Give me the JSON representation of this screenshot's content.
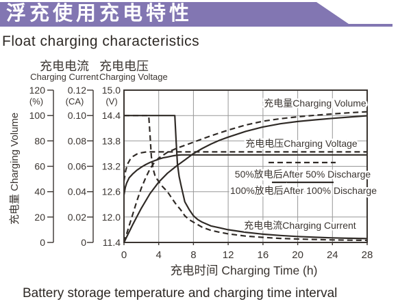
{
  "header": {
    "title_zh": "浮充使用充电特性",
    "title_en": "Float charging characteristics",
    "banner_color": "#8276b2"
  },
  "footer": {
    "caption": "Battery storage temperature and charging time interval"
  },
  "axis_titles": {
    "current_zh": "充电电流",
    "current_en": "Charging Current",
    "voltage_zh": "充电电压",
    "voltage_en": "Charging Voltage",
    "volume_label": "充电量 Charging Volume"
  },
  "chart_data": {
    "type": "line",
    "title": "Float charging characteristics",
    "grid": true,
    "x_axis": {
      "label": "充电时间 Charging Time (h)",
      "min": 0,
      "max": 28,
      "ticks": [
        0,
        4,
        8,
        12,
        16,
        20,
        24,
        28
      ]
    },
    "y_axes": {
      "volume": {
        "unit": "(%)",
        "min": 0,
        "max": 120,
        "ticks": [
          120,
          100,
          80,
          60,
          40,
          20,
          0
        ]
      },
      "current": {
        "unit": "(CA)",
        "min": 0,
        "max": 0.12,
        "ticks": [
          "0.12",
          "0.10",
          "0.08",
          "0.06",
          "0.04",
          "0.02",
          "0"
        ]
      },
      "voltage": {
        "unit": "(V)",
        "min": 11.4,
        "max": 15.0,
        "ticks": [
          "15.0",
          "14.4",
          "13.8",
          "13.2",
          "12.6",
          "12.0",
          "11.4"
        ]
      }
    },
    "annotations": {
      "volume": "充电量Charging Volume",
      "voltage": "充电电压Charging Voltage",
      "current": "充电电流Charging Current"
    },
    "legend": [
      {
        "style": "dashed",
        "label": "50%放电后After 50% Discharge"
      },
      {
        "style": "solid",
        "label": "100%放电后After 100% Discharge"
      }
    ],
    "series": [
      {
        "name": "volume-50",
        "axis": "volume",
        "style": "dashed",
        "points": [
          [
            0,
            0
          ],
          [
            0.5,
            11
          ],
          [
            1,
            22
          ],
          [
            1.5,
            33
          ],
          [
            2,
            43
          ],
          [
            2.5,
            51
          ],
          [
            3,
            58
          ],
          [
            3.5,
            63
          ],
          [
            4,
            66.5
          ],
          [
            5,
            71
          ],
          [
            6,
            74
          ],
          [
            7,
            76.5
          ],
          [
            8,
            79
          ],
          [
            9,
            81.5
          ],
          [
            10,
            84
          ],
          [
            12,
            88.5
          ],
          [
            14,
            92.5
          ],
          [
            16,
            95.5
          ],
          [
            18,
            97.5
          ],
          [
            20,
            99
          ],
          [
            22,
            100.2
          ],
          [
            24,
            101.3
          ],
          [
            26,
            102.2
          ],
          [
            28,
            103
          ]
        ]
      },
      {
        "name": "volume-100",
        "axis": "volume",
        "style": "solid",
        "points": [
          [
            0,
            0
          ],
          [
            1,
            14
          ],
          [
            2,
            27
          ],
          [
            3,
            38.5
          ],
          [
            4,
            47.5
          ],
          [
            5,
            54.5
          ],
          [
            6,
            60
          ],
          [
            7,
            65
          ],
          [
            8,
            70
          ],
          [
            9,
            74
          ],
          [
            10,
            77.5
          ],
          [
            11,
            80.5
          ],
          [
            12,
            83
          ],
          [
            14,
            87.5
          ],
          [
            16,
            91
          ],
          [
            18,
            93.5
          ],
          [
            20,
            95.3
          ],
          [
            22,
            96.6
          ],
          [
            24,
            97.8
          ],
          [
            26,
            98.8
          ],
          [
            28,
            99.8
          ]
        ]
      },
      {
        "name": "voltage-50",
        "axis": "voltage",
        "style": "dashed",
        "points": [
          [
            0,
            12.85
          ],
          [
            0.2,
            13.1
          ],
          [
            0.4,
            13.25
          ],
          [
            0.7,
            13.36
          ],
          [
            1,
            13.43
          ],
          [
            1.5,
            13.49
          ],
          [
            2,
            13.52
          ],
          [
            2.6,
            13.54
          ],
          [
            6,
            13.54
          ],
          [
            10,
            13.54
          ],
          [
            14,
            13.54
          ],
          [
            18,
            13.54
          ],
          [
            22,
            13.54
          ],
          [
            28,
            13.54
          ]
        ]
      },
      {
        "name": "voltage-100",
        "axis": "voltage",
        "style": "solid",
        "points": [
          [
            0,
            12.52
          ],
          [
            0.15,
            12.7
          ],
          [
            0.3,
            12.8
          ],
          [
            0.6,
            12.93
          ],
          [
            1,
            13.02
          ],
          [
            1.5,
            13.11
          ],
          [
            2,
            13.18
          ],
          [
            2.5,
            13.24
          ],
          [
            3,
            13.29
          ],
          [
            3.5,
            13.33
          ],
          [
            4,
            13.37
          ],
          [
            4.5,
            13.4
          ],
          [
            5,
            13.42
          ],
          [
            5.5,
            13.44
          ],
          [
            6,
            13.46
          ],
          [
            6.6,
            13.47
          ],
          [
            10,
            13.47
          ],
          [
            14,
            13.47
          ],
          [
            18,
            13.47
          ],
          [
            22,
            13.47
          ],
          [
            28,
            13.47
          ]
        ]
      },
      {
        "name": "current-50",
        "axis": "current",
        "style": "dashed",
        "points": [
          [
            0,
            0.1
          ],
          [
            2.85,
            0.1
          ],
          [
            3,
            0.085
          ],
          [
            3.15,
            0.068
          ],
          [
            3.35,
            0.058
          ],
          [
            3.6,
            0.052
          ],
          [
            4.3,
            0.045
          ],
          [
            5,
            0.04
          ],
          [
            5.5,
            0.035
          ],
          [
            6,
            0.03
          ],
          [
            6.5,
            0.026
          ],
          [
            7,
            0.021
          ],
          [
            7.5,
            0.018
          ],
          [
            8,
            0.016
          ],
          [
            9,
            0.012
          ],
          [
            10,
            0.0095
          ],
          [
            11,
            0.008
          ],
          [
            12,
            0.0068
          ],
          [
            14,
            0.005
          ],
          [
            16,
            0.004
          ],
          [
            18,
            0.0032
          ],
          [
            20,
            0.0027
          ],
          [
            22,
            0.0023
          ],
          [
            24,
            0.002
          ],
          [
            26,
            0.0018
          ],
          [
            28,
            0.0016
          ]
        ]
      },
      {
        "name": "current-100",
        "axis": "current",
        "style": "solid",
        "points": [
          [
            0,
            0.1
          ],
          [
            5.85,
            0.1
          ],
          [
            6,
            0.08
          ],
          [
            6.15,
            0.062
          ],
          [
            6.35,
            0.052
          ],
          [
            6.6,
            0.044
          ],
          [
            7,
            0.032
          ],
          [
            7.5,
            0.026
          ],
          [
            8,
            0.021
          ],
          [
            8.5,
            0.018
          ],
          [
            9,
            0.016
          ],
          [
            10,
            0.013
          ],
          [
            11,
            0.0115
          ],
          [
            12,
            0.01
          ],
          [
            14,
            0.008
          ],
          [
            16,
            0.0065
          ],
          [
            18,
            0.0055
          ],
          [
            20,
            0.0047
          ],
          [
            22,
            0.0041
          ],
          [
            24,
            0.0036
          ],
          [
            26,
            0.0033
          ],
          [
            28,
            0.003
          ]
        ]
      }
    ]
  }
}
